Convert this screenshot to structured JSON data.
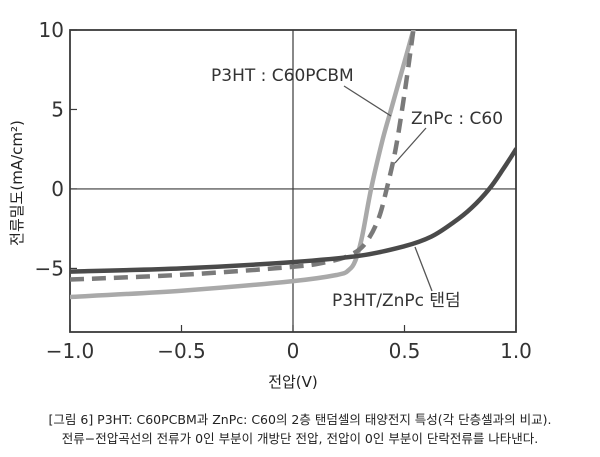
{
  "chart_data": {
    "type": "line",
    "xlabel": "전압(V)",
    "ylabel": "전류밀도(mA/cm²)",
    "xlim": [
      -1.0,
      1.0
    ],
    "ylim": [
      -9,
      10
    ],
    "x_ticks": [
      "−1.0",
      "−0.5",
      "0",
      "0.5",
      "1.0"
    ],
    "y_ticks": [
      "10",
      "5",
      "0",
      "−5"
    ],
    "grid": false,
    "series": [
      {
        "name": "P3HT : C60PCBM",
        "color": "#a9a9a9",
        "style": "solid",
        "points": [
          [
            -1.0,
            -6.8
          ],
          [
            -0.5,
            -6.4
          ],
          [
            0.0,
            -5.8
          ],
          [
            0.2,
            -5.4
          ],
          [
            0.25,
            -5.1
          ],
          [
            0.28,
            -4.5
          ],
          [
            0.31,
            -3.0
          ],
          [
            0.35,
            0.0
          ],
          [
            0.4,
            3.0
          ],
          [
            0.44,
            5.0
          ],
          [
            0.5,
            8.0
          ],
          [
            0.54,
            10.0
          ]
        ]
      },
      {
        "name": "ZnPc : C60",
        "color": "#7a7a7a",
        "style": "dashed",
        "points": [
          [
            -1.0,
            -5.7
          ],
          [
            -0.5,
            -5.4
          ],
          [
            0.0,
            -4.9
          ],
          [
            0.15,
            -4.6
          ],
          [
            0.25,
            -4.2
          ],
          [
            0.32,
            -3.5
          ],
          [
            0.38,
            -2.0
          ],
          [
            0.42,
            0.0
          ],
          [
            0.46,
            2.5
          ],
          [
            0.5,
            6.0
          ],
          [
            0.54,
            10.0
          ]
        ]
      },
      {
        "name": "P3HT/ZnPc 탠덤",
        "color": "#4a4a4a",
        "style": "solid",
        "points": [
          [
            -1.0,
            -5.2
          ],
          [
            -0.5,
            -5.0
          ],
          [
            0.0,
            -4.6
          ],
          [
            0.3,
            -4.2
          ],
          [
            0.5,
            -3.6
          ],
          [
            0.62,
            -3.0
          ],
          [
            0.72,
            -2.1
          ],
          [
            0.8,
            -1.2
          ],
          [
            0.88,
            0.0
          ],
          [
            0.94,
            1.2
          ],
          [
            1.0,
            2.5
          ]
        ]
      }
    ],
    "annotations": [
      {
        "text": "P3HT : C60PCBM",
        "target_series": 0
      },
      {
        "text": "ZnPc : C60",
        "target_series": 1
      },
      {
        "text": "P3HT/ZnPc 탠덤",
        "target_series": 2
      }
    ]
  },
  "caption": {
    "line1": "[그림 6] P3HT: C60PCBM과 ZnPc: C60의 2층 탠덤셀의 태양전지 특성(각 단층셀과의 비교).",
    "line2": "전류−전압곡선의 전류가 0인 부분이 개방단 전압, 전압이 0인 부분이 단락전류를 나타낸다."
  }
}
